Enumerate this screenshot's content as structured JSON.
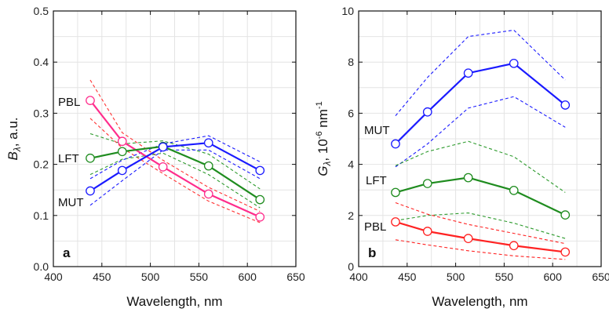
{
  "chart_data": [
    {
      "type": "line",
      "panel_label": "a",
      "xlabel": "Wavelength, nm",
      "ylabel_symbol": "B",
      "ylabel_sub": "λ",
      "ylabel_rest": ", a.u.",
      "xlim": [
        400,
        650
      ],
      "ylim": [
        0.0,
        0.5
      ],
      "xticks": [
        "400",
        "450",
        "500",
        "550",
        "600",
        "650"
      ],
      "yticks": [
        "0.0",
        "0.1",
        "0.2",
        "0.3",
        "0.4",
        "0.5"
      ],
      "grid": true,
      "x": [
        438,
        471,
        513,
        560,
        613
      ],
      "series": [
        {
          "name": "PBL",
          "color": "#ff2d8c",
          "band_color": "#ff3333",
          "values": [
            0.325,
            0.245,
            0.195,
            0.142,
            0.097
          ],
          "upper": [
            0.365,
            0.262,
            0.208,
            0.155,
            0.108
          ],
          "lower": [
            0.29,
            0.232,
            0.182,
            0.128,
            0.086
          ]
        },
        {
          "name": "LFT",
          "color": "#1f8c1f",
          "band_color": "#2e9b2e",
          "values": [
            0.212,
            0.225,
            0.235,
            0.197,
            0.131
          ],
          "upper": [
            0.26,
            0.24,
            0.246,
            0.22,
            0.152
          ],
          "lower": [
            0.18,
            0.21,
            0.222,
            0.18,
            0.115
          ]
        },
        {
          "name": "MUT",
          "color": "#1a1aff",
          "band_color": "#1a1aff",
          "values": [
            0.148,
            0.188,
            0.234,
            0.242,
            0.188
          ],
          "upper": [
            0.172,
            0.208,
            0.24,
            0.256,
            0.205
          ],
          "lower": [
            0.12,
            0.168,
            0.228,
            0.228,
            0.172
          ]
        }
      ]
    },
    {
      "type": "line",
      "panel_label": "b",
      "xlabel": "Wavelength, nm",
      "ylabel_symbol": "G",
      "ylabel_sub": "λ",
      "ylabel_rest": ", 10",
      "ylabel_exp1": "-6",
      "ylabel_unit": " nm",
      "ylabel_exp2": "-1",
      "xlim": [
        400,
        650
      ],
      "ylim": [
        0,
        10
      ],
      "xticks": [
        "400",
        "450",
        "500",
        "550",
        "600",
        "650"
      ],
      "yticks": [
        "0",
        "2",
        "4",
        "6",
        "8",
        "10"
      ],
      "grid": true,
      "x": [
        438,
        471,
        513,
        560,
        613
      ],
      "series": [
        {
          "name": "MUT",
          "color": "#1a1aff",
          "band_color": "#1a1aff",
          "values": [
            4.8,
            6.05,
            7.57,
            7.95,
            6.32
          ],
          "upper": [
            5.9,
            7.4,
            9.0,
            9.25,
            7.3
          ],
          "lower": [
            3.9,
            4.8,
            6.2,
            6.65,
            5.45
          ]
        },
        {
          "name": "LFT",
          "color": "#1f8c1f",
          "band_color": "#2e9b2e",
          "values": [
            2.9,
            3.25,
            3.48,
            2.98,
            2.02
          ],
          "upper": [
            3.95,
            4.5,
            4.9,
            4.3,
            2.9
          ],
          "lower": [
            1.8,
            2.0,
            2.1,
            1.7,
            1.1
          ]
        },
        {
          "name": "PBL",
          "color": "#ff2222",
          "band_color": "#ff2222",
          "values": [
            1.75,
            1.38,
            1.1,
            0.82,
            0.57
          ],
          "upper": [
            2.5,
            2.05,
            1.65,
            1.3,
            0.9
          ],
          "lower": [
            1.05,
            0.85,
            0.62,
            0.42,
            0.28
          ]
        }
      ]
    }
  ]
}
